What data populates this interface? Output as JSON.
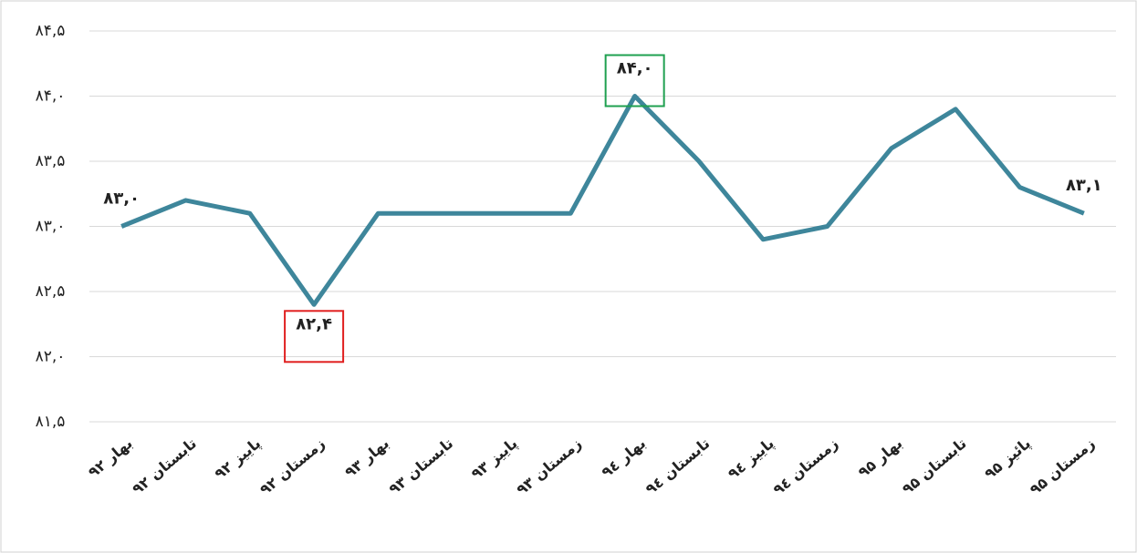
{
  "chart_data": {
    "type": "line",
    "categories": [
      "بهار ۹۲",
      "تابستان ۹۲",
      "پاییز ۹۲",
      "زمستان ۹۲",
      "بهار ۹۳",
      "تابستان ۹۳",
      "پاییز ۹۳",
      "زمستان ۹۳",
      "بهار ۹٤",
      "تابستان ۹٤",
      "پاییز ۹٤",
      "زمستان ۹٤",
      "بهار ۹۵",
      "تابستان ۹۵",
      "پائیز ۹۵",
      "زمستان ۹۵"
    ],
    "series": [
      {
        "color": "#3e869b",
        "values": [
          83.0,
          83.2,
          83.1,
          82.4,
          83.1,
          83.1,
          83.1,
          83.1,
          84.0,
          83.5,
          82.9,
          83.0,
          83.6,
          83.9,
          83.3,
          83.1
        ],
        "value_labels": [
          "۸۳,۰",
          null,
          null,
          "۸۲,۴",
          null,
          null,
          null,
          null,
          "۸۴,۰",
          null,
          null,
          null,
          null,
          null,
          null,
          "۸۳,۱"
        ],
        "value_label_boxes": [
          null,
          null,
          null,
          "#e02020",
          null,
          null,
          null,
          null,
          "#1fa050",
          null,
          null,
          null,
          null,
          null,
          null,
          null
        ]
      }
    ],
    "ylim": [
      81.5,
      84.5
    ],
    "yticks": [
      {
        "value": 81.5,
        "label": "۸۱,۵"
      },
      {
        "value": 82.0,
        "label": "۸۲,۰"
      },
      {
        "value": 82.5,
        "label": "۸۲,۵"
      },
      {
        "value": 83.0,
        "label": "۸۳,۰"
      },
      {
        "value": 83.5,
        "label": "۸۳,۵"
      },
      {
        "value": 84.0,
        "label": "۸۴,۰"
      },
      {
        "value": 84.5,
        "label": "۸۴,۵"
      }
    ],
    "grid": true
  }
}
